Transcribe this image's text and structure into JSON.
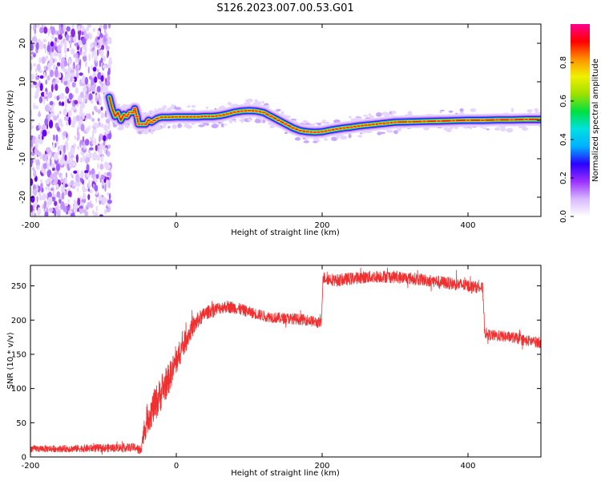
{
  "title": "S126.2023.007.00.53.G01",
  "chart_data": [
    {
      "type": "heatmap",
      "title": "S126.2023.007.00.53.G01",
      "xlabel": "Height of straight line (km)",
      "ylabel": "Frequency (Hz)",
      "xlim": [
        -200,
        500
      ],
      "ylim": [
        -25,
        25
      ],
      "x_ticks": [
        -200,
        0,
        200,
        400
      ],
      "y_ticks": [
        -20,
        -10,
        0,
        10,
        20
      ],
      "noise_region_x": [
        -200,
        -90
      ],
      "ridge": {
        "x": [
          -92,
          -88,
          -84,
          -80,
          -76,
          -72,
          -68,
          -64,
          -60,
          -57,
          -54,
          -52,
          -50,
          -46,
          -42,
          -38,
          -34,
          -30,
          -26,
          -20,
          -10,
          0,
          10,
          20,
          30,
          40,
          50,
          60,
          70,
          80,
          90,
          100,
          110,
          120,
          130,
          140,
          150,
          160,
          170,
          180,
          190,
          200,
          210,
          220,
          230,
          240,
          250,
          260,
          270,
          280,
          290,
          300,
          320,
          340,
          360,
          380,
          400,
          420,
          440,
          460,
          480,
          500
        ],
        "y": [
          6,
          3,
          1,
          2,
          0,
          1.5,
          1,
          2,
          2,
          3,
          1,
          -1,
          -1,
          -1,
          -1,
          0,
          -0.5,
          0,
          0.5,
          0.8,
          0.8,
          0.9,
          0.9,
          0.9,
          0.9,
          1.0,
          1.0,
          1.2,
          1.6,
          2.1,
          2.4,
          2.5,
          2.4,
          2.0,
          1.0,
          0,
          -1,
          -2,
          -2.7,
          -3.0,
          -3.1,
          -3.0,
          -2.6,
          -2.3,
          -2.0,
          -1.8,
          -1.5,
          -1.3,
          -1.1,
          -0.9,
          -0.7,
          -0.5,
          -0.4,
          -0.3,
          -0.2,
          -0.1,
          0,
          0,
          0.1,
          0.1,
          0.2,
          0.2
        ]
      }
    },
    {
      "type": "colorbar",
      "label": "Normalized spectral amplitude",
      "range": [
        0,
        1
      ],
      "ticks": [
        0.0,
        0.2,
        0.4,
        0.6,
        0.8
      ],
      "tick_labels": [
        "0.0",
        "0.2",
        "0.4",
        "0.6",
        "0.8"
      ],
      "colors": [
        "#ffffff",
        "#d8b8ff",
        "#9b30ff",
        "#2b00ff",
        "#00b0ff",
        "#00e0e0",
        "#00e040",
        "#a0e000",
        "#f0f000",
        "#ff9000",
        "#ff0000",
        "#ff0090"
      ]
    },
    {
      "type": "line",
      "xlabel": "Height of straight line (km)",
      "ylabel": "SNR (10 * v/v)",
      "xlim": [
        -200,
        500
      ],
      "ylim": [
        0,
        280
      ],
      "x_ticks": [
        -200,
        0,
        200,
        400
      ],
      "y_ticks": [
        0,
        50,
        100,
        150,
        200,
        250
      ],
      "color": "#f03030",
      "series": [
        {
          "x": [
            -200,
            -150,
            -100,
            -55,
            -50,
            -40,
            -30,
            -20,
            -10,
            0,
            10,
            20,
            30,
            40,
            50,
            60,
            70,
            80,
            100,
            120,
            140,
            160,
            180,
            199,
            201,
            220,
            250,
            280,
            300,
            330,
            360,
            400,
            420,
            423,
            430,
            460,
            480,
            500
          ],
          "y": [
            12,
            12,
            13,
            14,
            8,
            55,
            75,
            95,
            115,
            140,
            165,
            185,
            200,
            210,
            215,
            218,
            220,
            218,
            212,
            206,
            203,
            202,
            200,
            195,
            262,
            258,
            262,
            264,
            263,
            260,
            256,
            250,
            247,
            182,
            178,
            175,
            170,
            167
          ],
          "noise_amplitude": [
            5,
            5,
            6,
            6,
            8,
            22,
            25,
            25,
            22,
            20,
            18,
            14,
            12,
            10,
            9,
            9,
            9,
            9,
            8,
            8,
            8,
            8,
            8,
            8,
            9,
            9,
            9,
            9,
            9,
            9,
            9,
            9,
            8,
            8,
            8,
            8,
            8,
            8
          ]
        }
      ]
    }
  ]
}
